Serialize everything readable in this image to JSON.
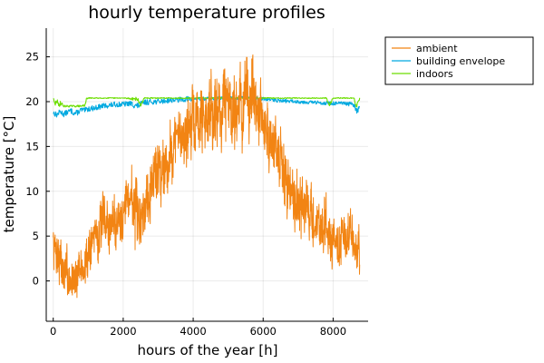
{
  "chart_data": {
    "type": "line",
    "title": "hourly temperature profiles",
    "xlabel": "hours of the year [h]",
    "ylabel": "temperature [°C]",
    "xlim": [
      -200,
      9000
    ],
    "ylim": [
      -4.5,
      28.2
    ],
    "xticks": [
      0,
      2000,
      4000,
      6000,
      8000
    ],
    "yticks": [
      0,
      5,
      10,
      15,
      20,
      25
    ],
    "grid": true,
    "legend_position": "top-right outside",
    "series": [
      {
        "name": "ambient",
        "color": "#f28413",
        "kind": "noisy-seasonal",
        "x": [
          0,
          100,
          200,
          300,
          400,
          500,
          600,
          700,
          800,
          900,
          1000,
          1100,
          1200,
          1300,
          1400,
          1500,
          1600,
          1700,
          1800,
          1900,
          2000,
          2100,
          2200,
          2300,
          2400,
          2500,
          2600,
          2700,
          2800,
          2900,
          3000,
          3100,
          3200,
          3300,
          3400,
          3500,
          3600,
          3700,
          3800,
          3900,
          4000,
          4100,
          4200,
          4300,
          4400,
          4500,
          4600,
          4700,
          4800,
          4900,
          5000,
          5100,
          5200,
          5300,
          5400,
          5500,
          5600,
          5700,
          5800,
          5900,
          6000,
          6100,
          6200,
          6300,
          6400,
          6500,
          6600,
          6700,
          6800,
          6900,
          7000,
          7100,
          7200,
          7300,
          7400,
          7500,
          7600,
          7700,
          7800,
          7900,
          8000,
          8100,
          8200,
          8300,
          8400,
          8500,
          8600,
          8700,
          8760
        ],
        "mean": [
          4.0,
          3.0,
          2.5,
          0.5,
          1.0,
          -0.5,
          1.0,
          0.5,
          1.5,
          1.0,
          3.5,
          4.0,
          6.0,
          5.0,
          6.5,
          7.0,
          5.5,
          7.0,
          6.0,
          7.5,
          8.0,
          9.0,
          10.0,
          8.5,
          6.0,
          7.5,
          8.0,
          10.5,
          11.0,
          12.0,
          13.0,
          12.0,
          14.0,
          13.0,
          15.0,
          16.0,
          15.5,
          17.0,
          16.0,
          18.0,
          16.5,
          18.5,
          17.5,
          19.0,
          18.0,
          20.0,
          18.5,
          19.5,
          19.0,
          21.0,
          19.5,
          20.0,
          19.0,
          20.5,
          19.0,
          20.5,
          19.5,
          21.5,
          20.0,
          18.0,
          17.5,
          16.0,
          16.5,
          15.0,
          14.5,
          13.0,
          12.0,
          10.5,
          11.0,
          9.0,
          9.5,
          8.0,
          8.5,
          7.0,
          7.5,
          6.0,
          6.5,
          5.5,
          6.0,
          5.0,
          4.5,
          5.0,
          4.0,
          5.0,
          4.5,
          5.5,
          4.0,
          3.5,
          3.0
        ],
        "amplitude": [
          3.0,
          3.0,
          3.0,
          3.0,
          2.8,
          2.8,
          2.8,
          2.8,
          2.8,
          3.0,
          3.0,
          3.0,
          3.2,
          3.2,
          3.2,
          3.5,
          3.5,
          3.5,
          3.5,
          3.5,
          4.0,
          4.0,
          4.0,
          4.5,
          4.5,
          4.5,
          4.0,
          4.0,
          4.0,
          4.0,
          4.0,
          4.0,
          4.0,
          4.0,
          4.2,
          4.2,
          4.2,
          4.2,
          4.5,
          4.5,
          4.5,
          4.5,
          4.8,
          4.8,
          4.8,
          4.8,
          5.0,
          5.0,
          5.0,
          5.0,
          5.0,
          5.0,
          5.0,
          5.0,
          5.0,
          5.0,
          5.0,
          5.0,
          5.0,
          4.5,
          4.5,
          4.5,
          4.0,
          4.0,
          4.0,
          4.0,
          4.0,
          4.0,
          3.8,
          3.8,
          3.8,
          3.8,
          3.5,
          3.5,
          3.5,
          3.5,
          3.2,
          3.2,
          3.2,
          3.2,
          3.0,
          3.0,
          3.0,
          3.0,
          3.0,
          3.0,
          3.0,
          3.0,
          3.0
        ],
        "min": -3.8,
        "max": 27.2
      },
      {
        "name": "building envelope",
        "color": "#00a9e0",
        "kind": "band",
        "x": [
          0,
          100,
          200,
          300,
          400,
          500,
          600,
          700,
          800,
          900,
          1000,
          1200,
          1400,
          1600,
          1800,
          2000,
          2200,
          2400,
          2600,
          2800,
          3000,
          3200,
          3400,
          3600,
          3800,
          4000,
          4500,
          5000,
          5500,
          6000,
          6500,
          7000,
          7500,
          8000,
          8300,
          8500,
          8600,
          8700,
          8760
        ],
        "mean": [
          18.8,
          18.5,
          18.9,
          18.6,
          18.8,
          19.0,
          18.7,
          18.8,
          19.1,
          19.0,
          19.2,
          19.3,
          19.5,
          19.6,
          19.7,
          19.7,
          19.8,
          19.5,
          19.9,
          20.0,
          20.0,
          20.1,
          20.2,
          20.2,
          20.3,
          20.3,
          20.3,
          20.4,
          20.4,
          20.3,
          20.1,
          20.0,
          19.9,
          19.8,
          19.8,
          19.7,
          19.5,
          18.9,
          19.3
        ],
        "amplitude": [
          0.3,
          0.3,
          0.3,
          0.3,
          0.3,
          0.3,
          0.3,
          0.3,
          0.3,
          0.3,
          0.3,
          0.3,
          0.3,
          0.3,
          0.3,
          0.3,
          0.3,
          0.4,
          0.3,
          0.3,
          0.3,
          0.3,
          0.3,
          0.3,
          0.3,
          0.3,
          0.2,
          0.2,
          0.2,
          0.2,
          0.2,
          0.2,
          0.2,
          0.2,
          0.2,
          0.3,
          0.3,
          0.4,
          0.3
        ]
      },
      {
        "name": "indoors",
        "color": "#6cde00",
        "kind": "band",
        "x": [
          0,
          50,
          100,
          150,
          200,
          300,
          400,
          500,
          600,
          700,
          800,
          900,
          950,
          1000,
          1500,
          2000,
          2400,
          2500,
          2600,
          3000,
          4000,
          5000,
          6000,
          7000,
          7800,
          7900,
          8000,
          8500,
          8600,
          8650,
          8700,
          8760
        ],
        "mean": [
          20.4,
          19.6,
          20.2,
          19.5,
          19.9,
          19.5,
          19.5,
          19.5,
          19.5,
          19.5,
          19.5,
          19.6,
          20.3,
          20.4,
          20.4,
          20.4,
          20.3,
          19.6,
          20.4,
          20.4,
          20.4,
          20.4,
          20.4,
          20.4,
          20.4,
          19.7,
          20.4,
          20.4,
          20.4,
          19.6,
          19.7,
          20.4
        ],
        "amplitude": [
          0.1,
          0.3,
          0.3,
          0.3,
          0.3,
          0.1,
          0.1,
          0.1,
          0.1,
          0.1,
          0.1,
          0.2,
          0.1,
          0.05,
          0.05,
          0.05,
          0.2,
          0.3,
          0.05,
          0.05,
          0.05,
          0.05,
          0.05,
          0.05,
          0.05,
          0.2,
          0.05,
          0.05,
          0.05,
          0.3,
          0.3,
          0.1
        ]
      }
    ]
  }
}
